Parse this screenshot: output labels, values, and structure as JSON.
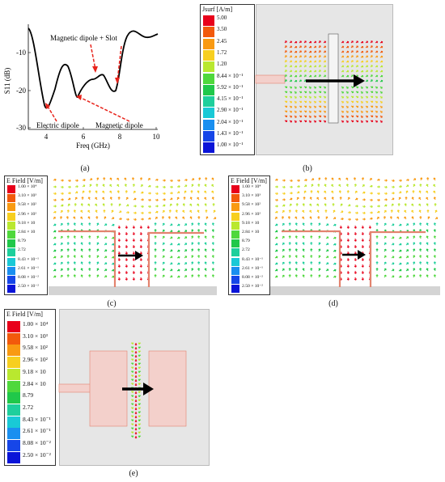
{
  "panel_a": {
    "label": "(a)",
    "ylabel": "S11 (dB)",
    "xlabel": "Freq (GHz)",
    "yticks": [
      "-10",
      "-20",
      "-30"
    ],
    "xticks": [
      "4",
      "6",
      "8",
      "10"
    ],
    "annotations": {
      "mag_slot": "Magnetic dipole + Slot",
      "electric": "Electric dipole",
      "magnetic": "Magnetic dipole"
    }
  },
  "panel_b": {
    "label": "(b)",
    "legend_title": "Jsurf [A/m]",
    "legend_values": [
      "5.00",
      "3.50",
      "2.45",
      "1.72",
      "1.20",
      "8.44 × 10⁻¹",
      "5.92 × 10⁻¹",
      "4.15 × 10⁻¹",
      "2.90 × 10⁻¹",
      "2.04 × 10⁻¹",
      "1.43 × 10⁻¹",
      "1.00 × 10⁻¹"
    ]
  },
  "efield_legend": {
    "title": "E Field [V/m]",
    "values": [
      "1.00 × 10⁴",
      "3.10 × 10³",
      "9.58 × 10²",
      "2.96 × 10²",
      "9.18 × 10",
      "2.84 × 10",
      "8.79",
      "2.72",
      "8.43 × 10⁻¹",
      "2.61 × 10⁻¹",
      "8.08 × 10⁻²",
      "2.50 × 10⁻²"
    ]
  },
  "panel_c": {
    "label": "(c)"
  },
  "panel_d": {
    "label": "(d)"
  },
  "panel_e": {
    "label": "(e)"
  },
  "colors": {
    "scale": [
      "#e8001a",
      "#f25a0c",
      "#f99a12",
      "#f7cf1f",
      "#b9e82f",
      "#4fd83c",
      "#20c84a",
      "#1ecf9c",
      "#19c9d6",
      "#1a8ff0",
      "#1646e8",
      "#0a14d8"
    ],
    "substrate": "#e6e6e6",
    "patch": "#f3d0cb",
    "patch_line": "#e3836e"
  }
}
